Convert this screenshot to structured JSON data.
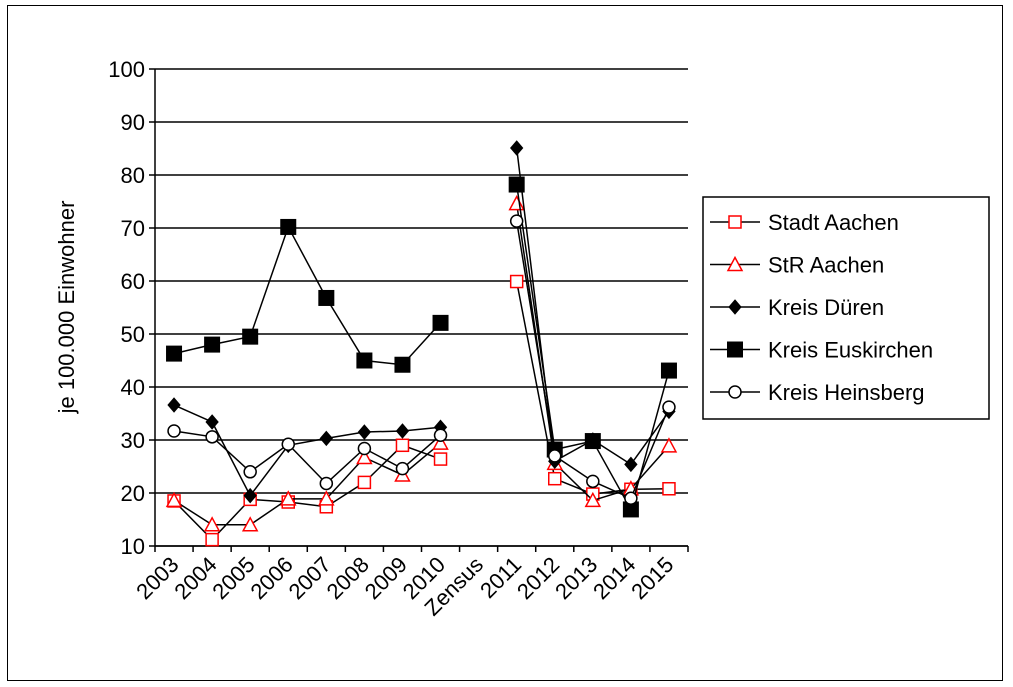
{
  "chart_data": {
    "type": "line",
    "ylabel": "je 100.000 Einwohner",
    "ylim": [
      10,
      100
    ],
    "yticks": [
      "10",
      "20",
      "30",
      "40",
      "50",
      "60",
      "70",
      "80",
      "90",
      "100"
    ],
    "categories": [
      "2003",
      "2004",
      "2005",
      "2006",
      "2007",
      "2008",
      "2009",
      "2010",
      "Zensus",
      "2011",
      "2012",
      "2013",
      "2014",
      "2015"
    ],
    "grid": true,
    "legend_position": "right",
    "series": [
      {
        "name": "Stadt Aachen",
        "color": "#ff0000",
        "marker": "square-open",
        "values": [
          18.5,
          11.2,
          18.8,
          18.3,
          17.4,
          22.0,
          29.0,
          26.4,
          null,
          59.9,
          22.7,
          19.8,
          20.7,
          20.8
        ]
      },
      {
        "name": "StR Aachen",
        "color": "#ff0000",
        "marker": "triangle-open",
        "values": [
          18.6,
          14.0,
          14.0,
          18.9,
          18.9,
          26.7,
          23.4,
          29.4,
          null,
          74.6,
          25.6,
          18.6,
          20.8,
          28.9
        ]
      },
      {
        "name": "Kreis Düren",
        "color": "#000000",
        "marker": "diamond-filled",
        "values": [
          36.6,
          33.4,
          19.5,
          29.0,
          30.3,
          31.5,
          31.7,
          32.4,
          null,
          85.1,
          26.0,
          30.0,
          25.4,
          35.4
        ]
      },
      {
        "name": "Kreis Euskirchen",
        "color": "#000000",
        "marker": "square-filled",
        "values": [
          46.3,
          48.0,
          49.5,
          70.2,
          56.8,
          45.0,
          44.2,
          52.1,
          null,
          78.2,
          28.2,
          29.8,
          16.9,
          43.1
        ]
      },
      {
        "name": "Kreis Heinsberg",
        "color": "#000000",
        "marker": "circle-open",
        "values": [
          31.7,
          30.6,
          24.0,
          29.2,
          21.8,
          28.4,
          24.6,
          30.9,
          null,
          71.3,
          27.0,
          22.2,
          19.0,
          36.2
        ]
      }
    ]
  }
}
